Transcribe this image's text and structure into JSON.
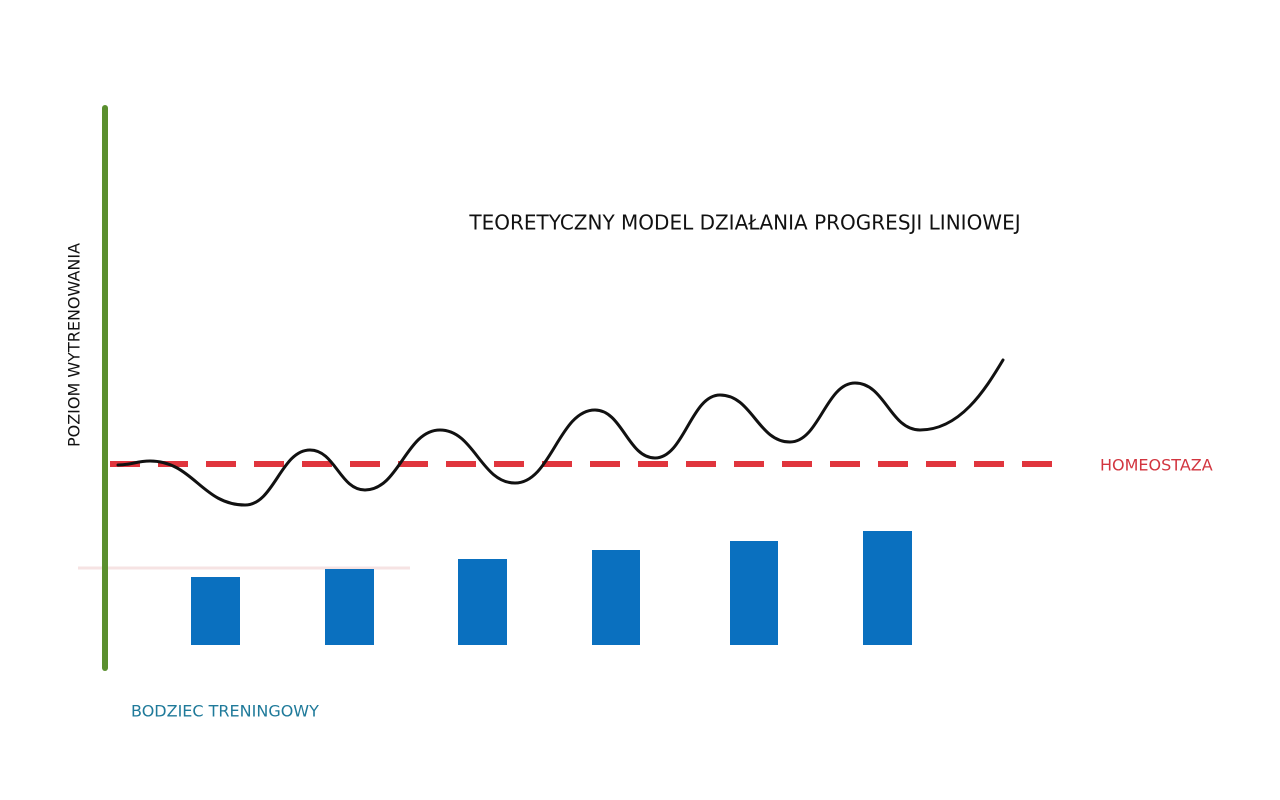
{
  "title": "TEORETYCZNY MODEL DZIAŁANIA PROGRESJI LINIOWEJ",
  "y_axis_label": "POZIOM WYTRENOWANIA",
  "homeostasis_label": "HOMEOSTAZA",
  "x_axis_label": "BODZIEC TRENINGOWY"
}
